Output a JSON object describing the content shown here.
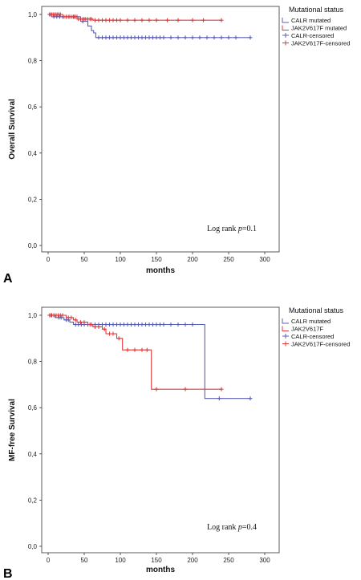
{
  "chart_data": [
    {
      "panel": "A",
      "type": "line",
      "ylabel": "Overall Survival",
      "xlabel": "months",
      "xlim": [
        0,
        300
      ],
      "ylim": [
        0.0,
        1.0
      ],
      "xticks": [
        "0",
        "50",
        "100",
        "150",
        "200",
        "250",
        "300"
      ],
      "yticks": [
        "0,0",
        "0,2",
        "0,4",
        "0,6",
        "0,8",
        "1,0"
      ],
      "legend_title": "Mutational status",
      "legend": [
        "CALR mutated",
        "JAK2V617F mutated",
        "CALR-censored",
        "JAK2V617F-censored"
      ],
      "annotation": {
        "prefix": "Log rank ",
        "p": "p",
        "suffix": "=0.1"
      },
      "series": [
        {
          "name": "CALR mutated",
          "color": "#5b5fb0",
          "steps": [
            [
              0,
              1.0
            ],
            [
              5,
              0.99
            ],
            [
              45,
              0.97
            ],
            [
              55,
              0.95
            ],
            [
              60,
              0.93
            ],
            [
              63,
              0.92
            ],
            [
              66,
              0.9
            ],
            [
              280,
              0.9
            ]
          ],
          "censored": [
            [
              3,
              1.0
            ],
            [
              8,
              0.99
            ],
            [
              12,
              0.99
            ],
            [
              16,
              0.99
            ],
            [
              20,
              0.99
            ],
            [
              25,
              0.99
            ],
            [
              30,
              0.99
            ],
            [
              35,
              0.99
            ],
            [
              40,
              0.99
            ],
            [
              48,
              0.97
            ],
            [
              70,
              0.9
            ],
            [
              75,
              0.9
            ],
            [
              80,
              0.9
            ],
            [
              85,
              0.9
            ],
            [
              90,
              0.9
            ],
            [
              95,
              0.9
            ],
            [
              100,
              0.9
            ],
            [
              105,
              0.9
            ],
            [
              110,
              0.9
            ],
            [
              115,
              0.9
            ],
            [
              120,
              0.9
            ],
            [
              125,
              0.9
            ],
            [
              130,
              0.9
            ],
            [
              135,
              0.9
            ],
            [
              140,
              0.9
            ],
            [
              145,
              0.9
            ],
            [
              150,
              0.9
            ],
            [
              155,
              0.9
            ],
            [
              160,
              0.9
            ],
            [
              170,
              0.9
            ],
            [
              180,
              0.9
            ],
            [
              190,
              0.9
            ],
            [
              200,
              0.9
            ],
            [
              210,
              0.9
            ],
            [
              220,
              0.9
            ],
            [
              230,
              0.9
            ],
            [
              240,
              0.9
            ],
            [
              250,
              0.9
            ],
            [
              260,
              0.9
            ],
            [
              280,
              0.9
            ]
          ]
        },
        {
          "name": "JAK2V617F mutated",
          "color": "#e03b3b",
          "steps": [
            [
              0,
              1.0
            ],
            [
              20,
              0.99
            ],
            [
              40,
              0.98
            ],
            [
              62,
              0.975
            ],
            [
              240,
              0.975
            ]
          ],
          "censored": [
            [
              2,
              1.0
            ],
            [
              5,
              1.0
            ],
            [
              7,
              1.0
            ],
            [
              9,
              1.0
            ],
            [
              11,
              1.0
            ],
            [
              13,
              1.0
            ],
            [
              15,
              1.0
            ],
            [
              17,
              1.0
            ],
            [
              22,
              0.99
            ],
            [
              25,
              0.99
            ],
            [
              28,
              0.99
            ],
            [
              30,
              0.99
            ],
            [
              33,
              0.99
            ],
            [
              36,
              0.99
            ],
            [
              38,
              0.99
            ],
            [
              42,
              0.98
            ],
            [
              45,
              0.98
            ],
            [
              48,
              0.98
            ],
            [
              50,
              0.98
            ],
            [
              52,
              0.98
            ],
            [
              55,
              0.98
            ],
            [
              58,
              0.98
            ],
            [
              60,
              0.98
            ],
            [
              65,
              0.975
            ],
            [
              70,
              0.975
            ],
            [
              75,
              0.975
            ],
            [
              80,
              0.975
            ],
            [
              85,
              0.975
            ],
            [
              90,
              0.975
            ],
            [
              95,
              0.975
            ],
            [
              100,
              0.975
            ],
            [
              110,
              0.975
            ],
            [
              120,
              0.975
            ],
            [
              130,
              0.975
            ],
            [
              140,
              0.975
            ],
            [
              150,
              0.975
            ],
            [
              165,
              0.975
            ],
            [
              180,
              0.975
            ],
            [
              200,
              0.975
            ],
            [
              215,
              0.975
            ],
            [
              240,
              0.975
            ]
          ]
        }
      ]
    },
    {
      "panel": "B",
      "type": "line",
      "ylabel": "MF-free Survival",
      "xlabel": "months",
      "xlim": [
        0,
        300
      ],
      "ylim": [
        0.0,
        1.0
      ],
      "xticks": [
        "0",
        "50",
        "100",
        "150",
        "200",
        "250",
        "300"
      ],
      "yticks": [
        "0,0",
        "0,2",
        "0,4",
        "0,6",
        "0,8",
        "1,0"
      ],
      "legend_title": "Mutational status",
      "legend": [
        "CALR mutated",
        "JAK2V617F",
        "CALR-censored",
        "JAK2V617F-censored"
      ],
      "annotation": {
        "prefix": "Log rank ",
        "p": "p",
        "suffix": "=0.4"
      },
      "series": [
        {
          "name": "CALR mutated",
          "color": "#5b5fb0",
          "steps": [
            [
              0,
              1.0
            ],
            [
              10,
              0.99
            ],
            [
              22,
              0.98
            ],
            [
              30,
              0.97
            ],
            [
              35,
              0.96
            ],
            [
              217,
              0.96
            ],
            [
              217,
              0.64
            ],
            [
              280,
              0.64
            ]
          ],
          "censored": [
            [
              4,
              1.0
            ],
            [
              8,
              1.0
            ],
            [
              15,
              0.99
            ],
            [
              18,
              0.99
            ],
            [
              25,
              0.98
            ],
            [
              28,
              0.98
            ],
            [
              38,
              0.96
            ],
            [
              42,
              0.96
            ],
            [
              46,
              0.96
            ],
            [
              50,
              0.96
            ],
            [
              55,
              0.96
            ],
            [
              60,
              0.96
            ],
            [
              65,
              0.96
            ],
            [
              70,
              0.96
            ],
            [
              75,
              0.96
            ],
            [
              80,
              0.96
            ],
            [
              85,
              0.96
            ],
            [
              90,
              0.96
            ],
            [
              95,
              0.96
            ],
            [
              100,
              0.96
            ],
            [
              105,
              0.96
            ],
            [
              110,
              0.96
            ],
            [
              115,
              0.96
            ],
            [
              120,
              0.96
            ],
            [
              125,
              0.96
            ],
            [
              130,
              0.96
            ],
            [
              135,
              0.96
            ],
            [
              140,
              0.96
            ],
            [
              145,
              0.96
            ],
            [
              150,
              0.96
            ],
            [
              155,
              0.96
            ],
            [
              160,
              0.96
            ],
            [
              170,
              0.96
            ],
            [
              180,
              0.96
            ],
            [
              190,
              0.96
            ],
            [
              200,
              0.96
            ],
            [
              237,
              0.64
            ],
            [
              280,
              0.64
            ]
          ]
        },
        {
          "name": "JAK2V617F",
          "color": "#e03b3b",
          "steps": [
            [
              0,
              1.0
            ],
            [
              25,
              0.99
            ],
            [
              35,
              0.98
            ],
            [
              40,
              0.97
            ],
            [
              55,
              0.96
            ],
            [
              62,
              0.95
            ],
            [
              75,
              0.94
            ],
            [
              80,
              0.92
            ],
            [
              95,
              0.9
            ],
            [
              103,
              0.85
            ],
            [
              143,
              0.85
            ],
            [
              143,
              0.68
            ],
            [
              240,
              0.68
            ]
          ],
          "censored": [
            [
              2,
              1.0
            ],
            [
              5,
              1.0
            ],
            [
              8,
              1.0
            ],
            [
              11,
              1.0
            ],
            [
              14,
              1.0
            ],
            [
              17,
              1.0
            ],
            [
              20,
              1.0
            ],
            [
              28,
              0.99
            ],
            [
              32,
              0.99
            ],
            [
              38,
              0.98
            ],
            [
              45,
              0.97
            ],
            [
              50,
              0.97
            ],
            [
              58,
              0.96
            ],
            [
              65,
              0.95
            ],
            [
              70,
              0.95
            ],
            [
              78,
              0.94
            ],
            [
              85,
              0.92
            ],
            [
              90,
              0.92
            ],
            [
              98,
              0.9
            ],
            [
              110,
              0.85
            ],
            [
              120,
              0.85
            ],
            [
              130,
              0.85
            ],
            [
              137,
              0.85
            ],
            [
              150,
              0.68
            ],
            [
              190,
              0.68
            ],
            [
              240,
              0.68
            ]
          ]
        }
      ]
    }
  ]
}
